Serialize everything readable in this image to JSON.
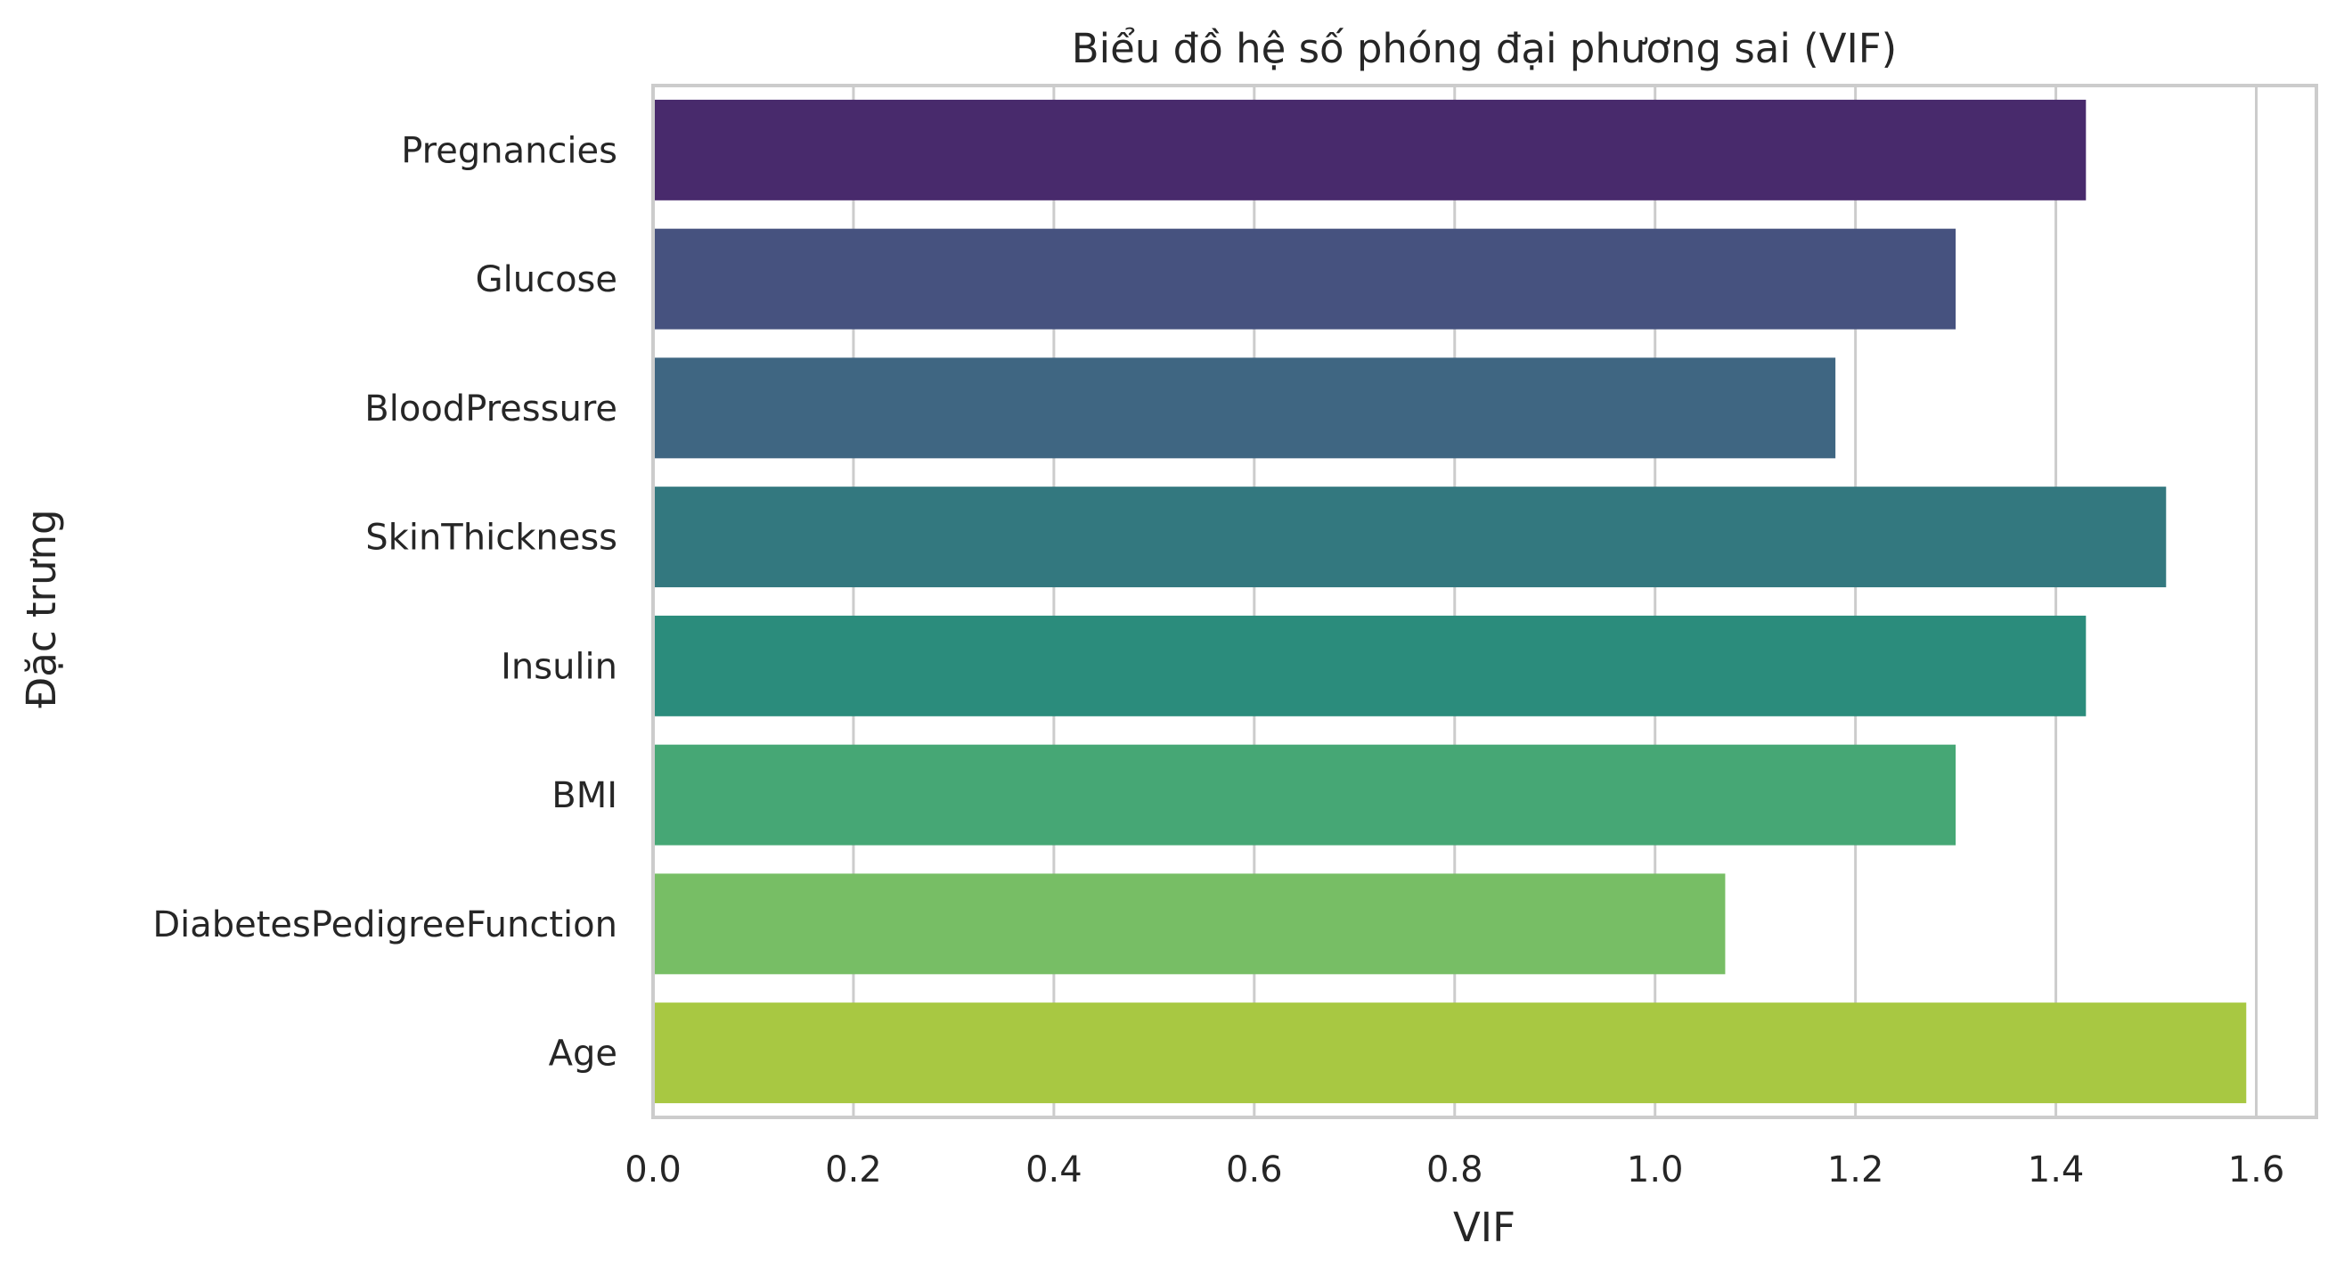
{
  "chart_data": {
    "type": "bar",
    "orientation": "horizontal",
    "title": "Biểu đồ hệ số phóng đại phương sai (VIF)",
    "xlabel": "VIF",
    "ylabel": "Đặc trưng",
    "categories": [
      "Pregnancies",
      "Glucose",
      "BloodPressure",
      "SkinThickness",
      "Insulin",
      "BMI",
      "DiabetesPedigreeFunction",
      "Age"
    ],
    "values": [
      1.43,
      1.3,
      1.18,
      1.51,
      1.43,
      1.3,
      1.07,
      1.59
    ],
    "colors": [
      "#482a6c",
      "#46527f",
      "#3f6682",
      "#33787f",
      "#2b8c7c",
      "#46a775",
      "#77be65",
      "#a8c842"
    ],
    "xlim": [
      0,
      1.66
    ],
    "xticks": [
      "0.0",
      "0.2",
      "0.4",
      "0.6",
      "0.8",
      "1.0",
      "1.2",
      "1.4",
      "1.6"
    ],
    "grid": true,
    "legend": "none"
  }
}
